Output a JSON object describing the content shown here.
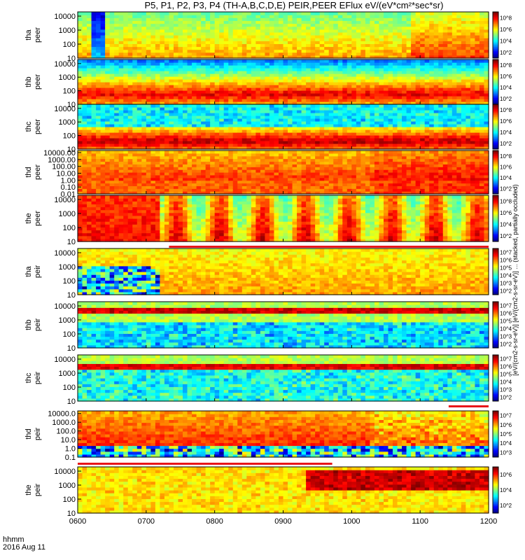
{
  "title": "P5, P1, P2, P3, P4 (TH-A,B,C,D,E) PEIR,PEER EFlux eV/(eV*cm²*sec*sr)",
  "footer": {
    "line1": "hhmm",
    "line2": "2016 Aug 11"
  },
  "colorbar_label": "[eV/(cm2-s-sr-eV)] [eV/(cm2-s-sr-eV)] ... (stacked, partially occluded)",
  "colors": {
    "bar_red": "#e8161a",
    "fill_yellow": "#fff200",
    "text": "#000000"
  },
  "chart_data": [
    {
      "type": "heatmap",
      "panel": "tha peer",
      "ylabel": [
        "tha",
        "peer"
      ],
      "y_scale": "log",
      "yticks": [
        "10",
        "100",
        "1000",
        "10000"
      ],
      "ylim": [
        10,
        20000
      ],
      "colorbar_ticks": [
        "10^2",
        "10^4",
        "10^6",
        "10^8"
      ],
      "x_ticks": [
        "0600",
        "0700",
        "0800",
        "0900",
        "1000",
        "1100",
        "1200"
      ]
    },
    {
      "type": "heatmap",
      "panel": "thb peer",
      "ylabel": [
        "thb",
        "peer"
      ],
      "y_scale": "log",
      "yticks": [
        "10",
        "100",
        "1000",
        "10000"
      ],
      "ylim": [
        10,
        20000
      ],
      "colorbar_ticks": [
        "10^2",
        "10^4",
        "10^6",
        "10^8"
      ]
    },
    {
      "type": "heatmap",
      "panel": "thc peer",
      "ylabel": [
        "thc",
        "peer"
      ],
      "y_scale": "log",
      "yticks": [
        "10",
        "100",
        "1000",
        "10000"
      ],
      "ylim": [
        10,
        20000
      ],
      "colorbar_ticks": [
        "10^2",
        "10^4",
        "10^6",
        "10^8"
      ]
    },
    {
      "type": "heatmap",
      "panel": "thd peer",
      "ylabel": [
        "thd",
        "peer"
      ],
      "y_scale": "log",
      "yticks": [
        "0.01",
        "0.10",
        "1.00",
        "10.00",
        "100.00",
        "1000.00",
        "10000.00"
      ],
      "ylim": [
        0.01,
        20000
      ],
      "colorbar_ticks": [
        "10^2",
        "10^4",
        "10^6",
        "10^8"
      ]
    },
    {
      "type": "heatmap",
      "panel": "the peer",
      "ylabel": [
        "the",
        "peer"
      ],
      "y_scale": "log",
      "yticks": [
        "10",
        "100",
        "1000",
        "10000"
      ],
      "ylim": [
        10,
        20000
      ],
      "colorbar_ticks": [
        "10^2",
        "10^4",
        "10^6",
        "10^8"
      ]
    },
    {
      "type": "heatmap",
      "panel": "tha peir",
      "ylabel": [
        "tha",
        "peir"
      ],
      "y_scale": "log",
      "yticks": [
        "10",
        "100",
        "1000",
        "10000"
      ],
      "ylim": [
        10,
        20000
      ],
      "colorbar_ticks": [
        "10^2",
        "10^3",
        "10^4",
        "10^5",
        "10^6",
        "10^7"
      ]
    },
    {
      "type": "heatmap",
      "panel": "thb peir",
      "ylabel": [
        "thb",
        "peir"
      ],
      "y_scale": "log",
      "yticks": [
        "10",
        "100",
        "1000",
        "10000"
      ],
      "ylim": [
        10,
        20000
      ],
      "colorbar_ticks": [
        "10^2",
        "10^3",
        "10^4",
        "10^5",
        "10^6",
        "10^7"
      ]
    },
    {
      "type": "heatmap",
      "panel": "thc peir",
      "ylabel": [
        "thc",
        "peir"
      ],
      "y_scale": "log",
      "yticks": [
        "10",
        "100",
        "1000",
        "10000"
      ],
      "ylim": [
        10,
        20000
      ],
      "colorbar_ticks": [
        "10^2",
        "10^3",
        "10^4",
        "10^5",
        "10^6",
        "10^7"
      ]
    },
    {
      "type": "heatmap",
      "panel": "thd peir",
      "ylabel": [
        "thd",
        "peir"
      ],
      "y_scale": "log",
      "yticks": [
        "0.1",
        "1.0",
        "10.0",
        "100.0",
        "1000.0",
        "10000.0"
      ],
      "ylim": [
        0.1,
        20000
      ],
      "colorbar_ticks": [
        "10^3",
        "10^4",
        "10^5",
        "10^6",
        "10^7"
      ]
    },
    {
      "type": "heatmap",
      "panel": "the peir",
      "ylabel": [
        "the",
        "peir"
      ],
      "y_scale": "log",
      "yticks": [
        "10",
        "100",
        "1000",
        "10000"
      ],
      "ylim": [
        10,
        20000
      ],
      "colorbar_ticks": [
        "10^2",
        "10^4",
        "10^6"
      ],
      "x_ticks": [
        "0600",
        "0700",
        "0800",
        "0900",
        "1000",
        "1100",
        "1200"
      ]
    }
  ],
  "x_axis": {
    "ticks": [
      "0600",
      "0700",
      "0800",
      "0900",
      "1000",
      "1100",
      "1200"
    ],
    "range_hhmm": [
      "0600",
      "1200"
    ]
  },
  "status_bars": [
    {
      "after_panel": "the peer",
      "from": "0720",
      "to": "1200",
      "color": "red"
    },
    {
      "after_panel": "thc peir",
      "from": "1125",
      "to": "1200",
      "color": "red"
    },
    {
      "after_panel": "thd peir",
      "from": "0600",
      "to": "0943",
      "color": "red"
    }
  ]
}
